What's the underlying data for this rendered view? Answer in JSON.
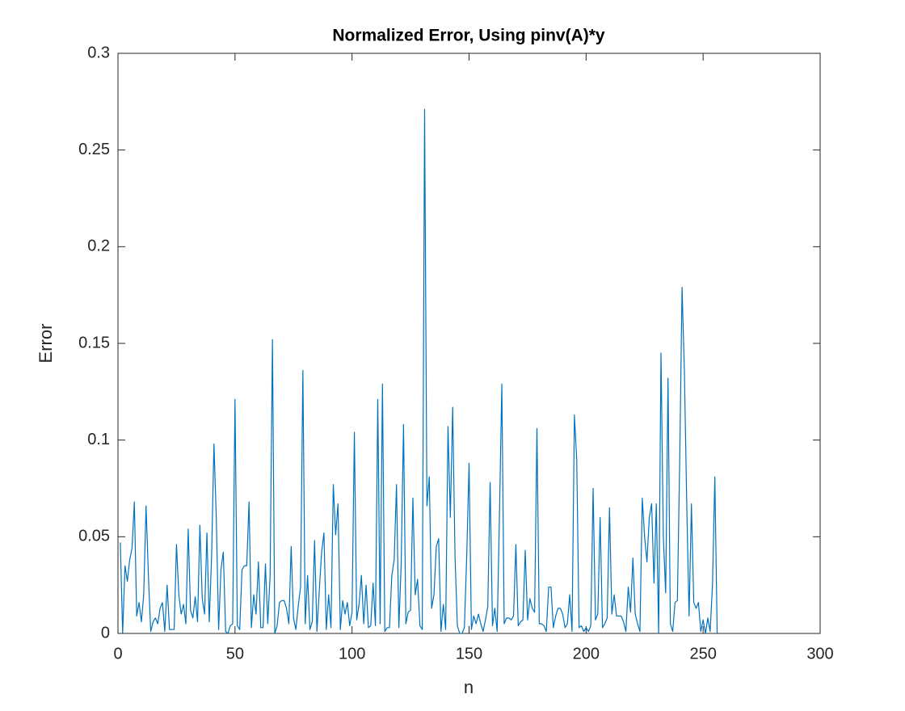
{
  "chart_data": {
    "type": "line",
    "title": "Normalized Error, Using pinv(A)*y",
    "x_label": "n",
    "y_label": "Error",
    "color": "#0072bd",
    "xlim": [
      0,
      300
    ],
    "xticks": [
      0,
      50,
      100,
      150,
      200,
      250,
      300
    ],
    "ylim": [
      0,
      0.3
    ],
    "yticks": [
      0,
      0.05,
      0.1,
      0.15,
      0.2,
      0.25,
      0.3
    ],
    "x": [
      1,
      2,
      3,
      4,
      5,
      6,
      7,
      8,
      9,
      10,
      11,
      12,
      13,
      14,
      15,
      16,
      17,
      18,
      19,
      20,
      21,
      22,
      23,
      24,
      25,
      26,
      27,
      28,
      29,
      30,
      31,
      32,
      33,
      34,
      35,
      36,
      37,
      38,
      39,
      40,
      41,
      42,
      43,
      44,
      45,
      46,
      47,
      48,
      49,
      50,
      51,
      52,
      53,
      54,
      55,
      56,
      57,
      58,
      59,
      60,
      61,
      62,
      63,
      64,
      65,
      66,
      67,
      68,
      69,
      70,
      71,
      72,
      73,
      74,
      75,
      76,
      77,
      78,
      79,
      80,
      81,
      82,
      83,
      84,
      85,
      86,
      87,
      88,
      89,
      90,
      91,
      92,
      93,
      94,
      95,
      96,
      97,
      98,
      99,
      100,
      101,
      102,
      103,
      104,
      105,
      106,
      107,
      108,
      109,
      110,
      111,
      112,
      113,
      114,
      115,
      116,
      117,
      118,
      119,
      120,
      121,
      122,
      123,
      124,
      125,
      126,
      127,
      128,
      129,
      130,
      131,
      132,
      133,
      134,
      135,
      136,
      137,
      138,
      139,
      140,
      141,
      142,
      143,
      144,
      145,
      146,
      147,
      148,
      149,
      150,
      151,
      152,
      153,
      154,
      155,
      156,
      157,
      158,
      159,
      160,
      161,
      162,
      163,
      164,
      165,
      166,
      167,
      168,
      169,
      170,
      171,
      172,
      173,
      174,
      175,
      176,
      177,
      178,
      179,
      180,
      181,
      182,
      183,
      184,
      185,
      186,
      187,
      188,
      189,
      190,
      191,
      192,
      193,
      194,
      195,
      196,
      197,
      198,
      199,
      200,
      201,
      202,
      203,
      204,
      205,
      206,
      207,
      208,
      209,
      210,
      211,
      212,
      213,
      214,
      215,
      216,
      217,
      218,
      219,
      220,
      221,
      222,
      223,
      224,
      225,
      226,
      227,
      228,
      229,
      230,
      231,
      232,
      233,
      234,
      235,
      236,
      237,
      238,
      239,
      240,
      241,
      242,
      243,
      244,
      245,
      246,
      247,
      248,
      249,
      250,
      251,
      252,
      253,
      254,
      255,
      256
    ],
    "values": [
      0.047,
      0,
      0.035,
      0.027,
      0.038,
      0.044,
      0.068,
      0.009,
      0.016,
      0.006,
      0.02,
      0.066,
      0.03,
      0.001,
      0.006,
      0.008,
      0.005,
      0.013,
      0.016,
      0.001,
      0.025,
      0.002,
      0.002,
      0.002,
      0.046,
      0.02,
      0.01,
      0.015,
      0.005,
      0.054,
      0.012,
      0.008,
      0.019,
      0.006,
      0.056,
      0.018,
      0.01,
      0.052,
      0.006,
      0.04,
      0.098,
      0.06,
      0.002,
      0.033,
      0.042,
      0.001,
      0,
      0.004,
      0.005,
      0.121,
      0.004,
      0.002,
      0.033,
      0.035,
      0.035,
      0.068,
      0.003,
      0.02,
      0.01,
      0.037,
      0.003,
      0.003,
      0.036,
      0.005,
      0.03,
      0.152,
      0,
      0.004,
      0.016,
      0.017,
      0.017,
      0.013,
      0.005,
      0.045,
      0.008,
      0.002,
      0.014,
      0.024,
      0.136,
      0.005,
      0.03,
      0.002,
      0.006,
      0.048,
      0.001,
      0.022,
      0.042,
      0.052,
      0.002,
      0.02,
      0.003,
      0.077,
      0.051,
      0.067,
      0.002,
      0.017,
      0.01,
      0.016,
      0.004,
      0.011,
      0.104,
      0.007,
      0.015,
      0.03,
      0.005,
      0.025,
      0.003,
      0.004,
      0.026,
      0.004,
      0.121,
      0.005,
      0.129,
      0.001,
      0.003,
      0.003,
      0.03,
      0.038,
      0.077,
      0.003,
      0.036,
      0.108,
      0.005,
      0.011,
      0.012,
      0.07,
      0.02,
      0.028,
      0.004,
      0.002,
      0.271,
      0.066,
      0.081,
      0.013,
      0.02,
      0.045,
      0.049,
      0.001,
      0.015,
      0.002,
      0.107,
      0.06,
      0.117,
      0.04,
      0.004,
      0,
      0,
      0.003,
      0.04,
      0.088,
      0.002,
      0.009,
      0.005,
      0.01,
      0.005,
      0.001,
      0.007,
      0.014,
      0.078,
      0.004,
      0.013,
      0.001,
      0.062,
      0.129,
      0.005,
      0.008,
      0.008,
      0.007,
      0.009,
      0.046,
      0.004,
      0.006,
      0.007,
      0.043,
      0.007,
      0.018,
      0.013,
      0.011,
      0.106,
      0.005,
      0.005,
      0.004,
      0.001,
      0.024,
      0.024,
      0.003,
      0.009,
      0.013,
      0.013,
      0.01,
      0.003,
      0.005,
      0.02,
      0.001,
      0.113,
      0.09,
      0.003,
      0.004,
      0.001,
      0.003,
      0.001,
      0.004,
      0.075,
      0.007,
      0.01,
      0.06,
      0.003,
      0.005,
      0.008,
      0.065,
      0.01,
      0.02,
      0.009,
      0.009,
      0.009,
      0.006,
      0.001,
      0.024,
      0.011,
      0.039,
      0.01,
      0.005,
      0.001,
      0.07,
      0.05,
      0.037,
      0.06,
      0.067,
      0.026,
      0.067,
      0,
      0.145,
      0.05,
      0.021,
      0.132,
      0.005,
      0.001,
      0.016,
      0.017,
      0.09,
      0.179,
      0.135,
      0.067,
      0.009,
      0.067,
      0.016,
      0.013,
      0.016,
      0.001,
      0.007,
      0,
      0.008,
      0.001,
      0.025,
      0.081,
      0
    ]
  }
}
